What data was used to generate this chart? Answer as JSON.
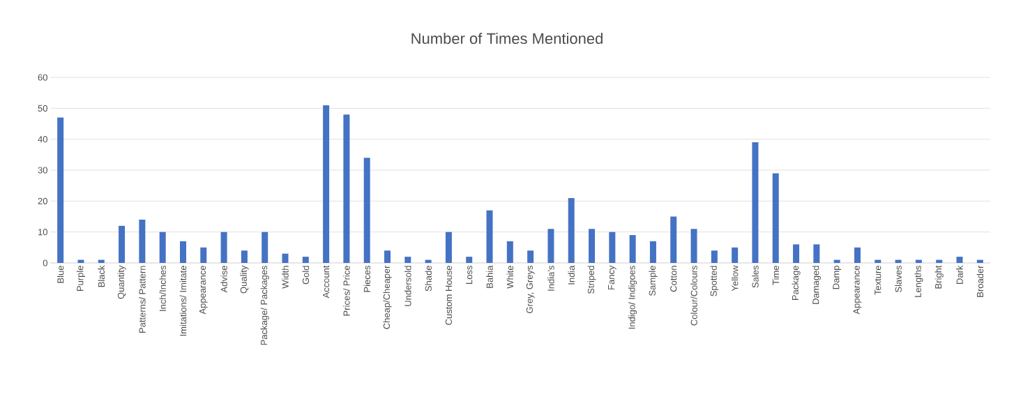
{
  "chart_data": {
    "type": "bar",
    "title": "Number of Times Mentioned",
    "categories": [
      "Blue",
      "Purple",
      "Black",
      "Quantity",
      "Patterns/ Pattern",
      "Inch/Inches",
      "Imitations/ Imitate",
      "Appearance",
      "Advise",
      "Quality",
      "Package/ Packages",
      "Width",
      "Gold",
      "Account",
      "Prices/ Price",
      "Pieces",
      "Cheap/Cheaper",
      "Undersold",
      "Shade",
      "Custom House",
      "Loss",
      "Bahia",
      "White",
      "Grey, Greys",
      "India’s",
      "India",
      "Striped",
      "Fancy",
      "Indigo/ Indigoes",
      "Sample",
      "Cotton",
      "Colour/Colours",
      "Spotted",
      "Yellow",
      "Sales",
      "Time",
      "Package",
      "Damaged",
      "Damp",
      "Appearance",
      "Texture",
      "Slaves",
      "Lengths",
      "Bright",
      "Dark",
      "Broader"
    ],
    "values": [
      47,
      1,
      1,
      12,
      14,
      10,
      7,
      5,
      10,
      4,
      10,
      3,
      2,
      51,
      48,
      34,
      4,
      2,
      1,
      10,
      2,
      17,
      7,
      4,
      11,
      21,
      11,
      10,
      9,
      7,
      15,
      11,
      4,
      5,
      39,
      29,
      6,
      6,
      1,
      5,
      1,
      1,
      1,
      1,
      2,
      1
    ],
    "color": "#4472c4",
    "ylim": [
      0,
      60
    ],
    "yticks": [
      0,
      10,
      20,
      30,
      40,
      50,
      60
    ],
    "grid": "y"
  }
}
